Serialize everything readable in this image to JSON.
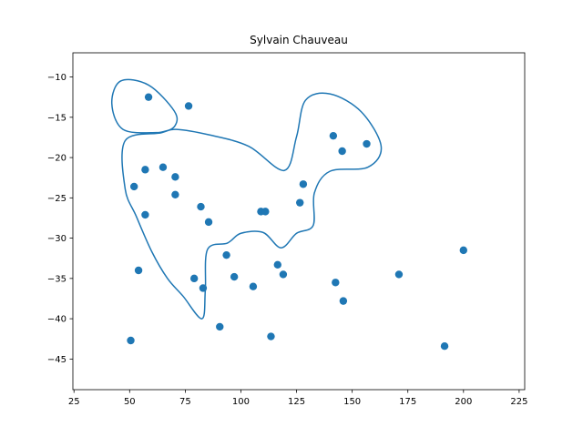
{
  "chart_data": {
    "type": "scatter",
    "title": "Sylvain Chauveau",
    "xlabel": "",
    "ylabel": "",
    "xlim": [
      24.5,
      227.5
    ],
    "ylim": [
      -48.8,
      -7.0
    ],
    "xticks": [
      25,
      50,
      75,
      100,
      125,
      150,
      175,
      200,
      225
    ],
    "yticks": [
      -10,
      -15,
      -20,
      -25,
      -30,
      -35,
      -40,
      -45
    ],
    "xtick_labels": [
      "25",
      "50",
      "75",
      "100",
      "125",
      "150",
      "175",
      "200",
      "225"
    ],
    "ytick_labels": [
      "−10",
      "−15",
      "−20",
      "−25",
      "−30",
      "−35",
      "−40",
      "−45"
    ],
    "grid": false,
    "legend": "none",
    "colors": {
      "points": "#1f77b4",
      "contour": "#1f77b4"
    },
    "points": [
      {
        "x": 58.5,
        "y": -12.5
      },
      {
        "x": 76.5,
        "y": -13.6
      },
      {
        "x": 57.0,
        "y": -21.5
      },
      {
        "x": 65.0,
        "y": -21.2
      },
      {
        "x": 70.5,
        "y": -22.4
      },
      {
        "x": 52.0,
        "y": -23.6
      },
      {
        "x": 70.5,
        "y": -24.6
      },
      {
        "x": 57.0,
        "y": -27.1
      },
      {
        "x": 82.0,
        "y": -26.1
      },
      {
        "x": 85.5,
        "y": -28.0
      },
      {
        "x": 109.0,
        "y": -26.7
      },
      {
        "x": 111.0,
        "y": -26.7
      },
      {
        "x": 126.5,
        "y": -25.6
      },
      {
        "x": 128.0,
        "y": -23.3
      },
      {
        "x": 141.5,
        "y": -17.3
      },
      {
        "x": 145.5,
        "y": -19.2
      },
      {
        "x": 156.5,
        "y": -18.3
      },
      {
        "x": 54.0,
        "y": -34.0
      },
      {
        "x": 79.0,
        "y": -35.0
      },
      {
        "x": 83.0,
        "y": -36.2
      },
      {
        "x": 93.5,
        "y": -32.1
      },
      {
        "x": 97.0,
        "y": -34.8
      },
      {
        "x": 105.5,
        "y": -36.0
      },
      {
        "x": 116.5,
        "y": -33.3
      },
      {
        "x": 119.0,
        "y": -34.5
      },
      {
        "x": 142.5,
        "y": -35.5
      },
      {
        "x": 146.0,
        "y": -37.8
      },
      {
        "x": 171.0,
        "y": -34.5
      },
      {
        "x": 200.0,
        "y": -31.5
      },
      {
        "x": 90.5,
        "y": -41.0
      },
      {
        "x": 113.5,
        "y": -42.2
      },
      {
        "x": 50.5,
        "y": -42.7
      },
      {
        "x": 191.5,
        "y": -43.4
      }
    ],
    "contours": [
      [
        [
          71.0,
          -16.5
        ],
        [
          86.0,
          -17.2
        ],
        [
          103.5,
          -18.6
        ],
        [
          119.5,
          -21.6
        ],
        [
          125.0,
          -17.4
        ],
        [
          129.0,
          -12.9
        ],
        [
          140.0,
          -12.1
        ],
        [
          154.0,
          -14.3
        ],
        [
          163.0,
          -18.6
        ],
        [
          157.0,
          -21.2
        ],
        [
          140.0,
          -21.7
        ],
        [
          133.0,
          -24.4
        ],
        [
          132.5,
          -28.4
        ],
        [
          125.0,
          -29.4
        ],
        [
          118.0,
          -31.2
        ],
        [
          110.0,
          -29.3
        ],
        [
          100.0,
          -29.4
        ],
        [
          94.0,
          -30.6
        ],
        [
          85.0,
          -31.4
        ],
        [
          84.0,
          -36.5
        ],
        [
          82.5,
          -40.0
        ],
        [
          74.0,
          -37.2
        ],
        [
          67.0,
          -35.0
        ],
        [
          60.0,
          -31.7
        ],
        [
          53.0,
          -27.3
        ],
        [
          48.0,
          -23.9
        ],
        [
          48.0,
          -17.9
        ],
        [
          64.5,
          -16.9
        ],
        [
          70.5,
          -16.0
        ],
        [
          70.0,
          -14.2
        ],
        [
          58.5,
          -11.0
        ],
        [
          46.0,
          -10.5
        ],
        [
          42.0,
          -13.3
        ],
        [
          47.0,
          -16.5
        ],
        [
          62.0,
          -16.9
        ]
      ]
    ]
  }
}
